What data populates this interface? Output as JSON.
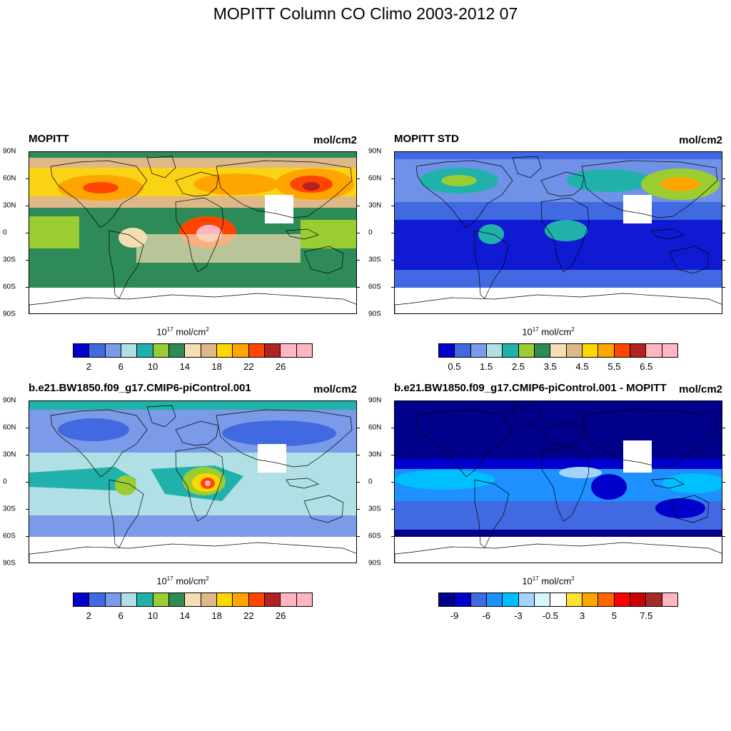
{
  "figure_title": "MOPITT Column CO Climo 2003-2012 07",
  "lat_labels": [
    "90N",
    "60N",
    "30N",
    "0",
    "30S",
    "60S",
    "90S"
  ],
  "colorbar_unit_base": "10",
  "colorbar_unit_exp": "17",
  "colorbar_unit_tail": " mol/cm",
  "colorbar_unit_sq": "2",
  "panels": [
    {
      "title": "MOPITT",
      "units": "mol/cm2",
      "colors": [
        "#0000cd",
        "#4169e1",
        "#7b9be8",
        "#b0e0e6",
        "#20b2aa",
        "#9acd32",
        "#2e8b57",
        "#f5deb3",
        "#deb887",
        "#ffd700",
        "#ffa500",
        "#ff4500",
        "#b22222",
        "#ffb6c1",
        "#ffb6c1"
      ],
      "tick_labels": [
        "2",
        "6",
        "10",
        "14",
        "18",
        "22",
        "26"
      ]
    },
    {
      "title": "MOPITT STD",
      "units": "mol/cm2",
      "colors": [
        "#0000cd",
        "#4169e1",
        "#7b9be8",
        "#b0e0e6",
        "#20b2aa",
        "#9acd32",
        "#2e8b57",
        "#f5deb3",
        "#deb887",
        "#ffd700",
        "#ffa500",
        "#ff4500",
        "#b22222",
        "#ffb6c1",
        "#ffb6c1"
      ],
      "tick_labels": [
        "0.5",
        "1.5",
        "2.5",
        "3.5",
        "4.5",
        "5.5",
        "6.5"
      ]
    },
    {
      "title": "b.e21.BW1850.f09_g17.CMIP6-piControl.001",
      "units": "mol/cm2",
      "colors": [
        "#0000cd",
        "#4169e1",
        "#7b9be8",
        "#b0e0e6",
        "#20b2aa",
        "#9acd32",
        "#2e8b57",
        "#f5deb3",
        "#deb887",
        "#ffd700",
        "#ffa500",
        "#ff4500",
        "#b22222",
        "#ffb6c1",
        "#ffb6c1"
      ],
      "tick_labels": [
        "2",
        "6",
        "10",
        "14",
        "18",
        "22",
        "26"
      ]
    },
    {
      "title": "b.e21.BW1850.f09_g17.CMIP6-piControl.001 - MOPITT",
      "units": "mol/cm2",
      "colors": [
        "#00008b",
        "#0000cd",
        "#4169e1",
        "#1e90ff",
        "#00bfff",
        "#a4d3ff",
        "#d7f5ff",
        "#ffffff",
        "#ffe135",
        "#ffa500",
        "#ff6600",
        "#ff0000",
        "#cc0000",
        "#a52a2a",
        "#ffb6c1"
      ],
      "tick_labels": [
        "-9",
        "-6",
        "-3",
        "-0.5",
        "3",
        "5",
        "7.5"
      ]
    }
  ]
}
